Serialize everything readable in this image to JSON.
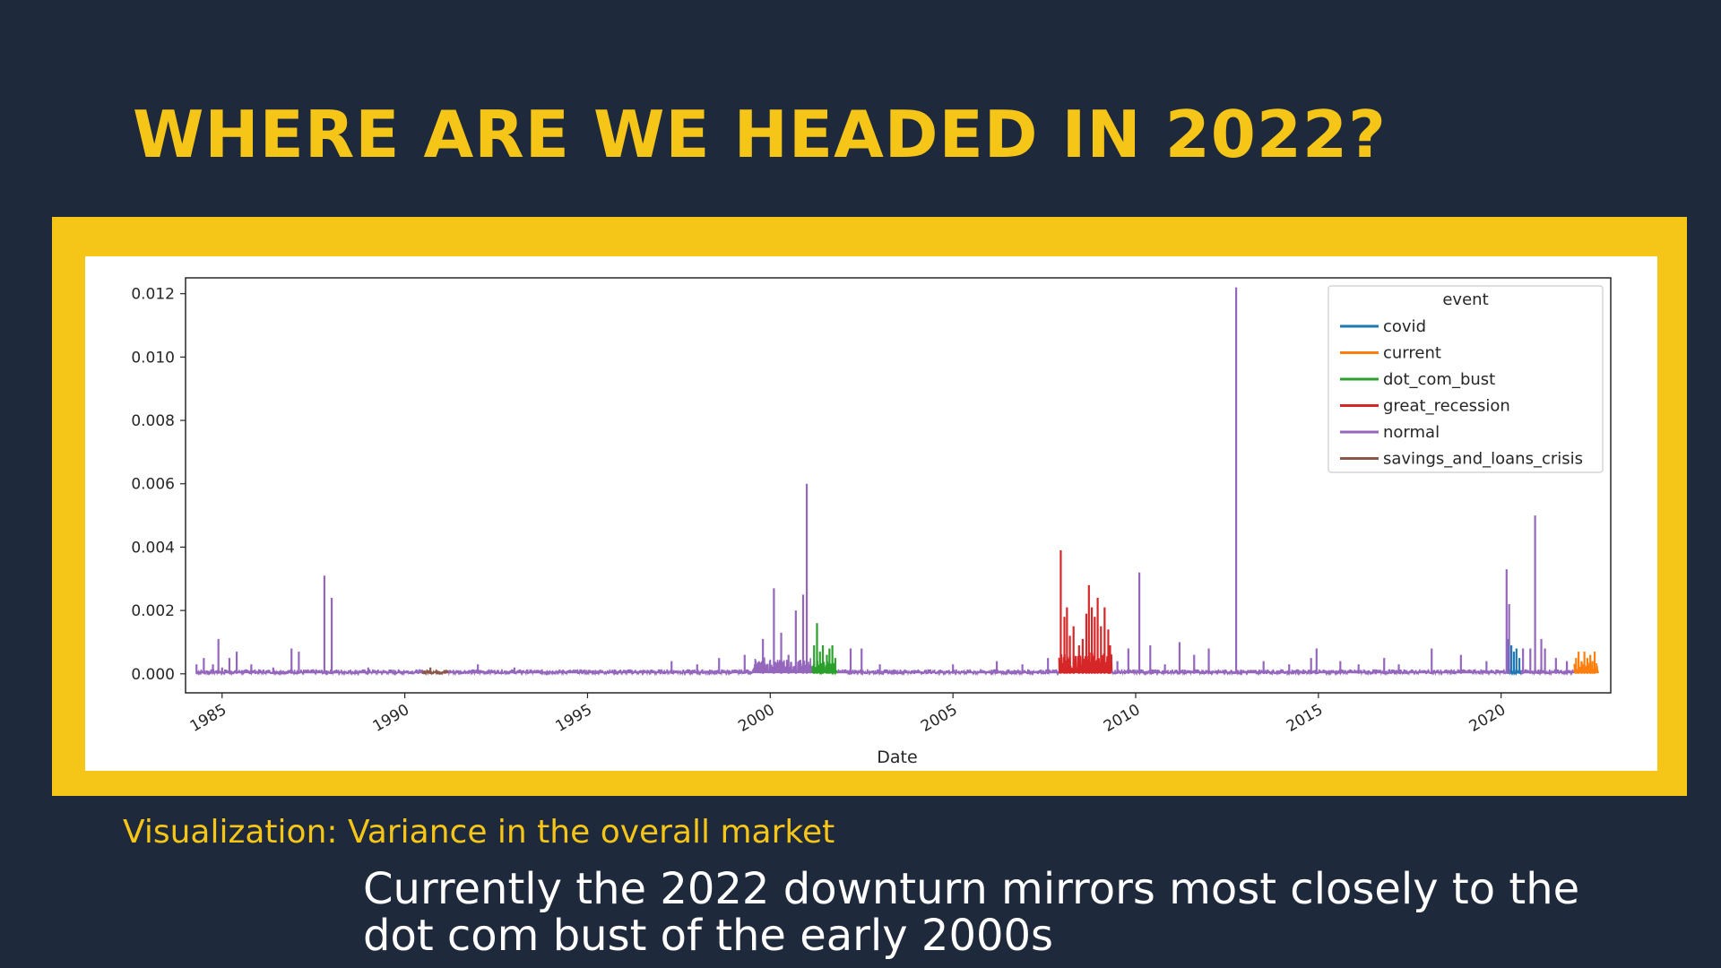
{
  "slide": {
    "title": "WHERE ARE WE HEADED IN 2022?",
    "caption": "Visualization: Variance in the overall market",
    "summary": "Currently the 2022 downturn mirrors most closely to the dot com bust of the early 2000s"
  },
  "colors": {
    "background": "#1e293b",
    "accent": "#f5c518",
    "covid": "#1f77b4",
    "current": "#ff7f0e",
    "dot_com_bust": "#2ca02c",
    "great_recession": "#d62728",
    "normal": "#9467bd",
    "savings_and_loans_crisis": "#8c564b"
  },
  "chart_data": {
    "type": "line",
    "xlabel": "Date",
    "ylabel": "",
    "xlim": [
      1984.0,
      2023.0
    ],
    "ylim": [
      -0.0006,
      0.0125
    ],
    "yticks": [
      0.0,
      0.002,
      0.004,
      0.006,
      0.008,
      0.01,
      0.012
    ],
    "ytick_labels": [
      "0.000",
      "0.002",
      "0.004",
      "0.006",
      "0.008",
      "0.010",
      "0.012"
    ],
    "xticks": [
      1985,
      1990,
      1995,
      2000,
      2005,
      2010,
      2015,
      2020
    ],
    "xtick_labels": [
      "1985",
      "1990",
      "1995",
      "2000",
      "2005",
      "2010",
      "2015",
      "2020"
    ],
    "grid": false,
    "legend": {
      "title": "event",
      "position": "top-right"
    },
    "series": [
      {
        "name": "covid",
        "spikes": [
          [
            2020.2,
            0.0011
          ],
          [
            2020.28,
            0.0009
          ],
          [
            2020.35,
            0.0007
          ],
          [
            2020.42,
            0.0008
          ],
          [
            2020.5,
            0.0005
          ]
        ]
      },
      {
        "name": "current",
        "spikes": [
          [
            2022.05,
            0.0005
          ],
          [
            2022.12,
            0.0007
          ],
          [
            2022.2,
            0.0004
          ],
          [
            2022.28,
            0.0007
          ],
          [
            2022.36,
            0.0005
          ],
          [
            2022.44,
            0.0006
          ],
          [
            2022.5,
            0.0004
          ],
          [
            2022.56,
            0.0007
          ]
        ]
      },
      {
        "name": "dot_com_bust",
        "spikes": [
          [
            2001.2,
            0.0009
          ],
          [
            2001.28,
            0.0016
          ],
          [
            2001.36,
            0.0007
          ],
          [
            2001.44,
            0.0009
          ],
          [
            2001.55,
            0.0006
          ],
          [
            2001.62,
            0.0008
          ],
          [
            2001.7,
            0.0009
          ],
          [
            2001.78,
            0.0005
          ]
        ]
      },
      {
        "name": "great_recession",
        "spikes": [
          [
            2007.95,
            0.0039
          ],
          [
            2008.05,
            0.0018
          ],
          [
            2008.12,
            0.0021
          ],
          [
            2008.2,
            0.0012
          ],
          [
            2008.3,
            0.0015
          ],
          [
            2008.45,
            0.0009
          ],
          [
            2008.55,
            0.0011
          ],
          [
            2008.65,
            0.0019
          ],
          [
            2008.72,
            0.0028
          ],
          [
            2008.8,
            0.0021
          ],
          [
            2008.88,
            0.0018
          ],
          [
            2008.96,
            0.0024
          ],
          [
            2009.05,
            0.0015
          ],
          [
            2009.15,
            0.0021
          ],
          [
            2009.25,
            0.0014
          ],
          [
            2009.3,
            0.0009
          ]
        ]
      },
      {
        "name": "normal",
        "spikes": [
          [
            1984.3,
            0.0003
          ],
          [
            1984.5,
            0.0005
          ],
          [
            1984.75,
            0.0003
          ],
          [
            1984.9,
            0.0011
          ],
          [
            1985.0,
            0.0002
          ],
          [
            1985.2,
            0.0005
          ],
          [
            1985.4,
            0.0007
          ],
          [
            1985.8,
            0.0003
          ],
          [
            1986.4,
            0.0002
          ],
          [
            1986.9,
            0.0008
          ],
          [
            1987.1,
            0.0007
          ],
          [
            1987.8,
            0.0031
          ],
          [
            1988.0,
            0.0024
          ],
          [
            1989.0,
            0.0002
          ],
          [
            1992.0,
            0.0003
          ],
          [
            1993.0,
            0.0002
          ],
          [
            1997.3,
            0.0004
          ],
          [
            1998.0,
            0.0003
          ],
          [
            1998.6,
            0.0005
          ],
          [
            1999.3,
            0.0006
          ],
          [
            1999.8,
            0.0011
          ],
          [
            2000.1,
            0.0027
          ],
          [
            2000.3,
            0.0013
          ],
          [
            2000.5,
            0.0006
          ],
          [
            2000.7,
            0.002
          ],
          [
            2000.9,
            0.0025
          ],
          [
            2001.0,
            0.006
          ],
          [
            2002.2,
            0.0008
          ],
          [
            2002.5,
            0.0008
          ],
          [
            2003.0,
            0.0003
          ],
          [
            2005.0,
            0.0003
          ],
          [
            2006.2,
            0.0004
          ],
          [
            2006.9,
            0.0003
          ],
          [
            2007.6,
            0.0005
          ],
          [
            2009.5,
            0.0004
          ],
          [
            2009.8,
            0.0008
          ],
          [
            2010.1,
            0.0032
          ],
          [
            2010.4,
            0.0009
          ],
          [
            2010.8,
            0.0003
          ],
          [
            2011.2,
            0.001
          ],
          [
            2011.6,
            0.0006
          ],
          [
            2012.0,
            0.0008
          ],
          [
            2012.75,
            0.0122
          ],
          [
            2013.5,
            0.0004
          ],
          [
            2014.2,
            0.0003
          ],
          [
            2014.8,
            0.0005
          ],
          [
            2014.95,
            0.0008
          ],
          [
            2015.6,
            0.0004
          ],
          [
            2016.1,
            0.0003
          ],
          [
            2016.8,
            0.0005
          ],
          [
            2017.2,
            0.0003
          ],
          [
            2018.1,
            0.0008
          ],
          [
            2018.9,
            0.0006
          ],
          [
            2019.6,
            0.0004
          ],
          [
            2020.15,
            0.0033
          ],
          [
            2020.22,
            0.0022
          ],
          [
            2020.6,
            0.0008
          ],
          [
            2020.8,
            0.0008
          ],
          [
            2020.93,
            0.005
          ],
          [
            2021.1,
            0.0011
          ],
          [
            2021.2,
            0.0008
          ],
          [
            2021.5,
            0.0005
          ],
          [
            2021.8,
            0.0004
          ]
        ]
      },
      {
        "name": "savings_and_loans_crisis",
        "spikes": [
          [
            1990.5,
            0.0001
          ],
          [
            1990.7,
            0.0002
          ],
          [
            1990.9,
            0.0001
          ],
          [
            1991.1,
            0.0001
          ]
        ]
      }
    ],
    "segments": [
      {
        "name": "normal",
        "range": [
          1984.3,
          1990.5
        ]
      },
      {
        "name": "savings_and_loans_crisis",
        "range": [
          1990.5,
          1991.2
        ]
      },
      {
        "name": "normal",
        "range": [
          1991.2,
          2001.15
        ]
      },
      {
        "name": "dot_com_bust",
        "range": [
          2001.15,
          2001.85
        ]
      },
      {
        "name": "normal",
        "range": [
          2001.85,
          2007.9
        ]
      },
      {
        "name": "great_recession",
        "range": [
          2007.9,
          2009.35
        ]
      },
      {
        "name": "normal",
        "range": [
          2009.35,
          2020.15
        ]
      },
      {
        "name": "covid",
        "range": [
          2020.15,
          2020.55
        ]
      },
      {
        "name": "normal",
        "range": [
          2020.55,
          2022.0
        ]
      },
      {
        "name": "current",
        "range": [
          2022.0,
          2022.65
        ]
      }
    ]
  }
}
